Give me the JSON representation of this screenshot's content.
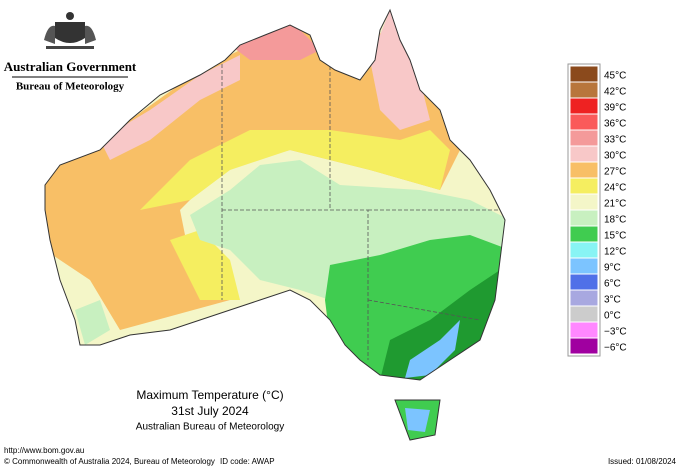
{
  "header": {
    "government": "Australian Government",
    "agency": "Bureau of Meteorology"
  },
  "map": {
    "title": "Maximum Temperature (°C)",
    "date": "31st July 2024",
    "source": "Australian Bureau of Meteorology"
  },
  "legend": [
    {
      "label": "45°C",
      "color": "#8b4a1c"
    },
    {
      "label": "42°C",
      "color": "#b8763c"
    },
    {
      "label": "39°C",
      "color": "#ee2222"
    },
    {
      "label": "36°C",
      "color": "#fa5a5a"
    },
    {
      "label": "33°C",
      "color": "#f49a9a"
    },
    {
      "label": "30°C",
      "color": "#f8c8c8"
    },
    {
      "label": "27°C",
      "color": "#f8bf66"
    },
    {
      "label": "24°C",
      "color": "#f5ee60"
    },
    {
      "label": "21°C",
      "color": "#f4f6c8"
    },
    {
      "label": "18°C",
      "color": "#c8f0c0"
    },
    {
      "label": "15°C",
      "color": "#40cc50"
    },
    {
      "label": "12°C",
      "color": "#88f4f4"
    },
    {
      "label": "9°C",
      "color": "#7cc4ff"
    },
    {
      "label": "6°C",
      "color": "#5070e8"
    },
    {
      "label": "3°C",
      "color": "#a8a8e0"
    },
    {
      "label": "0°C",
      "color": "#cccccc"
    },
    {
      "label": "−3°C",
      "color": "#ff88ff"
    },
    {
      "label": "−6°C",
      "color": "#a000a0"
    }
  ],
  "footer": {
    "url": "http://www.bom.gov.au",
    "copyright": "© Commonwealth of Australia 2024, Bureau of Meteorology",
    "id_code": "ID code: AWAP",
    "issued": "Issued: 01/08/2024"
  }
}
